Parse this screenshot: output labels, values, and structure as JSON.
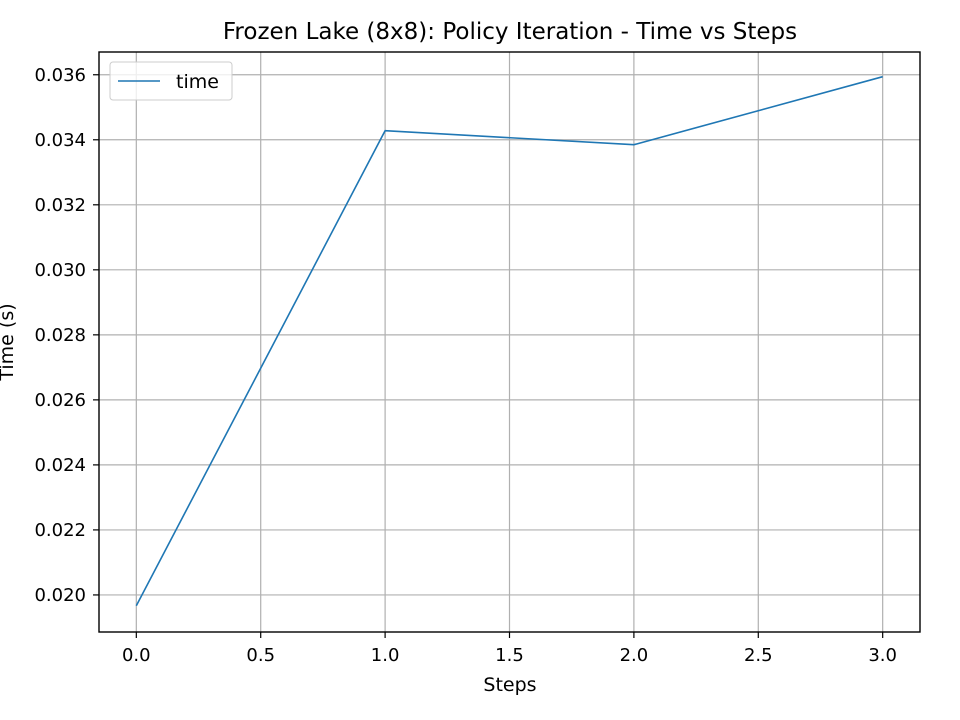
{
  "chart_data": {
    "type": "line",
    "title": "Frozen Lake (8x8): Policy Iteration - Time vs Steps",
    "xlabel": "Steps",
    "ylabel": "Time (s)",
    "xlim": [
      -0.15,
      3.15
    ],
    "ylim": [
      0.01886,
      0.0367
    ],
    "xticks": [
      0.0,
      0.5,
      1.0,
      1.5,
      2.0,
      2.5,
      3.0
    ],
    "xtick_labels": [
      "0.0",
      "0.5",
      "1.0",
      "1.5",
      "2.0",
      "2.5",
      "3.0"
    ],
    "yticks": [
      0.02,
      0.022,
      0.024,
      0.026,
      0.028,
      0.03,
      0.032,
      0.034,
      0.036
    ],
    "ytick_labels": [
      "0.020",
      "0.022",
      "0.024",
      "0.026",
      "0.028",
      "0.030",
      "0.032",
      "0.034",
      "0.036"
    ],
    "grid": true,
    "legend_position": "top-left",
    "series": [
      {
        "name": "time",
        "color": "#1f77b4",
        "x": [
          0,
          1,
          2,
          3
        ],
        "y": [
          0.01967,
          0.03428,
          0.03385,
          0.03594
        ]
      }
    ]
  }
}
